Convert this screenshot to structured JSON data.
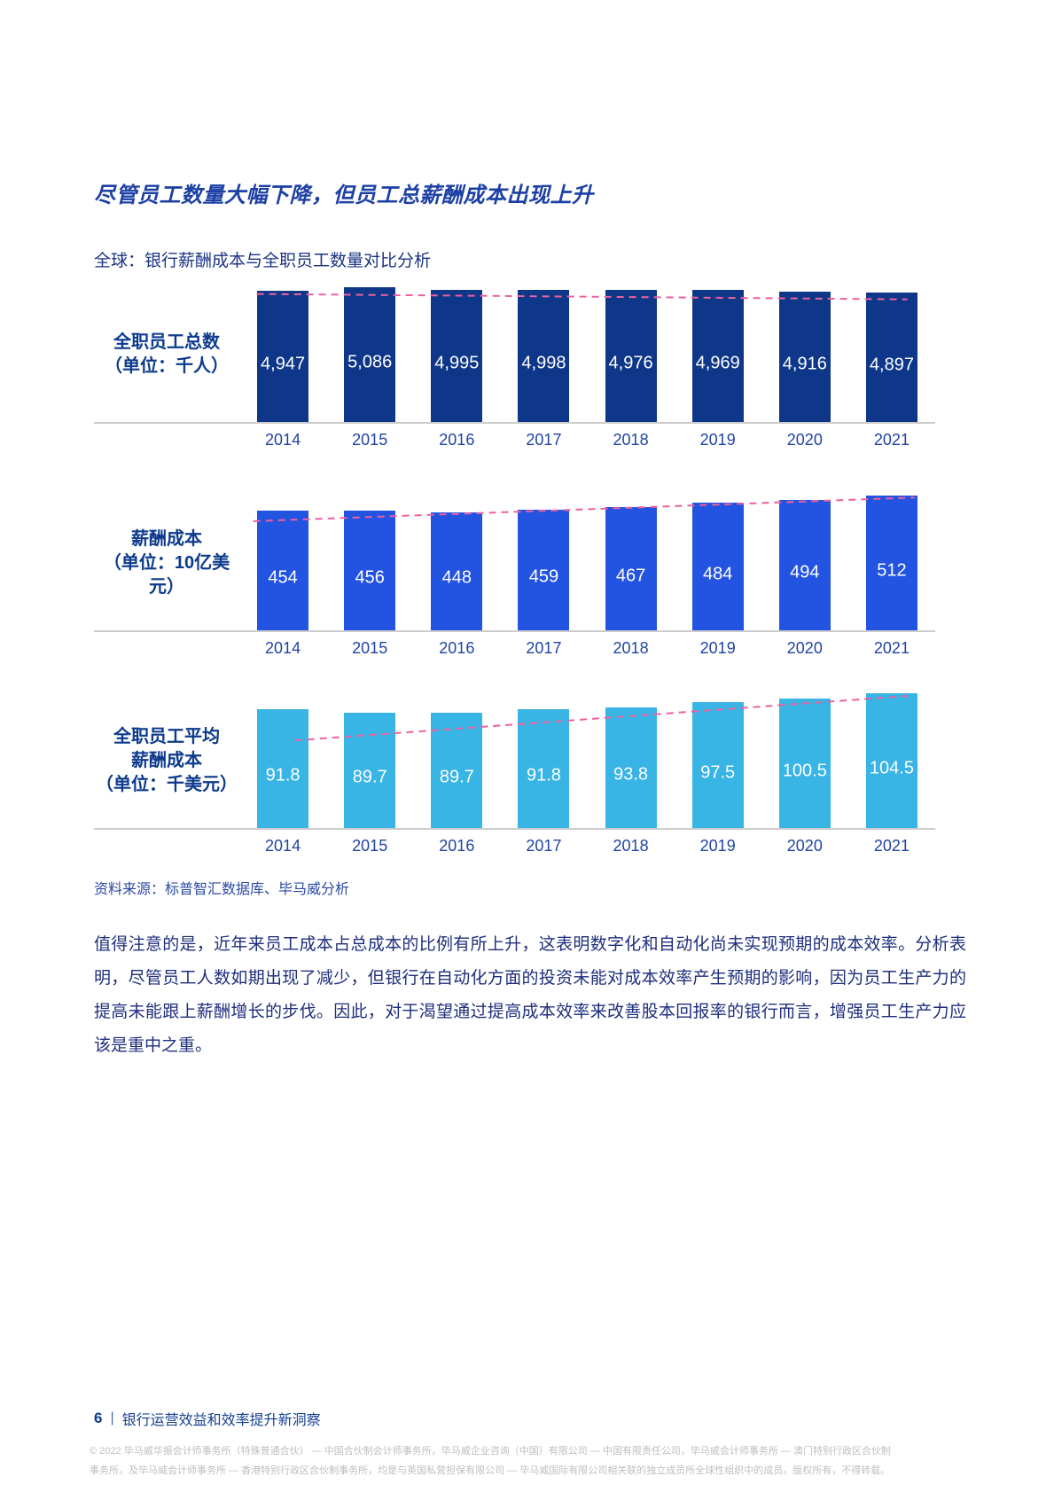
{
  "page": {
    "title": "尽管员工数量大幅下降，但员工总薪酬成本出现上升",
    "subtitle": "全球：银行薪酬成本与全职员工数量对比分析",
    "source": "资料来源：标普智汇数据库、毕马威分析",
    "body_paragraph": "值得注意的是，近年来员工成本占总成本的比例有所上升，这表明数字化和自动化尚未实现预期的成本效率。分析表明，尽管员工人数如期出现了减少，但银行在自动化方面的投资未能对成本效率产生预期的影响，因为员工生产力的提高未能跟上薪酬增长的步伐。因此，对于渴望通过提高成本效率来改善股本回报率的银行而言，增强员工生产力应该是重中之重。",
    "footer": {
      "page_number": "6",
      "separator": "|",
      "report_title": "银行运营效益和效率提升新洞察"
    },
    "copyright_line1": "© 2022 毕马威华振会计师事务所（特殊普通合伙） — 中国合伙制会计师事务所，毕马威企业咨询（中国）有限公司 — 中国有限责任公司，毕马威会计师事务所 — 澳门特别行政区合伙制",
    "copyright_line2": "事务所，及毕马威会计师事务所 — 香港特别行政区合伙制事务所，均是与英国私营担保有限公司 — 毕马威国际有限公司相关联的独立成员所全球性组织中的成员。版权所有，不得转载。"
  },
  "chart_data": [
    {
      "type": "bar",
      "title": "全职员工总数（单位：千人）",
      "label_lines": [
        "全职员工总数",
        "（单位：千人）"
      ],
      "unit": "千人",
      "categories": [
        "2014",
        "2015",
        "2016",
        "2017",
        "2018",
        "2019",
        "2020",
        "2021"
      ],
      "values": [
        4947,
        5086,
        4995,
        4998,
        4976,
        4969,
        4916,
        4897
      ],
      "value_labels": [
        "4,947",
        "5,086",
        "4,995",
        "4,998",
        "4,976",
        "4,969",
        "4,916",
        "4,897"
      ],
      "bar_color": "#0E3789",
      "ylim": [
        0,
        5086
      ],
      "xlabel": "",
      "ylabel": "",
      "grid": false,
      "trend_line": {
        "color": "#EC619F",
        "x1_pct": 2.5,
        "y1_pct": 5,
        "x2_pct": 96,
        "y2_pct": 9
      }
    },
    {
      "type": "bar",
      "title": "薪酬成本（单位：10亿美元）",
      "label_lines": [
        "薪酬成本",
        "（单位：10亿美元）"
      ],
      "unit": "10亿美元",
      "categories": [
        "2014",
        "2015",
        "2016",
        "2017",
        "2018",
        "2019",
        "2020",
        "2021"
      ],
      "values": [
        454,
        456,
        448,
        459,
        467,
        484,
        494,
        512
      ],
      "value_labels": [
        "454",
        "456",
        "448",
        "459",
        "467",
        "484",
        "494",
        "512"
      ],
      "bar_color": "#2353E1",
      "ylim": [
        0,
        512
      ],
      "xlabel": "",
      "ylabel": "",
      "grid": false,
      "trend_line": {
        "color": "#EC619F",
        "x1_pct": 2,
        "y1_pct": 19,
        "x2_pct": 97,
        "y2_pct": 1.5
      }
    },
    {
      "type": "bar",
      "title": "全职员工平均薪酬成本（单位：千美元）",
      "label_lines": [
        "全职员工平均",
        "薪酬成本",
        "（单位：千美元）"
      ],
      "unit": "千美元",
      "categories": [
        "2014",
        "2015",
        "2016",
        "2017",
        "2018",
        "2019",
        "2020",
        "2021"
      ],
      "values": [
        91.8,
        89.7,
        89.7,
        91.8,
        93.8,
        97.5,
        100.5,
        104.5
      ],
      "value_labels": [
        "91.8",
        "89.7",
        "89.7",
        "91.8",
        "93.8",
        "97.5",
        "100.5",
        "104.5"
      ],
      "bar_color": "#38B4E5",
      "ylim": [
        0,
        104.5
      ],
      "xlabel": "",
      "ylabel": "",
      "grid": false,
      "trend_line": {
        "color": "#EC619F",
        "x1_pct": 8,
        "y1_pct": 35,
        "x2_pct": 96,
        "y2_pct": 2
      }
    }
  ]
}
